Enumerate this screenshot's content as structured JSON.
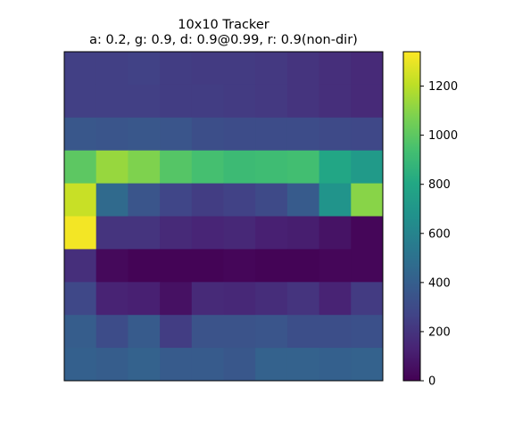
{
  "chart_data": {
    "type": "heatmap",
    "title": "10x10 Tracker",
    "subtitle": "a: 0.2, g: 0.9, d: 0.9@0.99, r: 0.9(non-dir)",
    "xlabel": "",
    "ylabel": "",
    "x_ticks_visible": false,
    "y_ticks_visible": false,
    "grid": false,
    "colormap": "viridis",
    "vmin": 0,
    "vmax": 1340,
    "colorbar_ticks": [
      "0",
      "200",
      "400",
      "600",
      "800",
      "1000",
      "1200"
    ],
    "colorbar_tick_values": [
      0,
      200,
      400,
      600,
      800,
      1000,
      1200
    ],
    "rows": 10,
    "cols": 10,
    "values": [
      [
        250,
        250,
        260,
        240,
        230,
        230,
        220,
        200,
        180,
        160
      ],
      [
        250,
        250,
        250,
        240,
        240,
        230,
        220,
        200,
        180,
        160
      ],
      [
        360,
        350,
        360,
        350,
        320,
        310,
        310,
        310,
        300,
        290
      ],
      [
        1000,
        1130,
        1080,
        980,
        940,
        910,
        920,
        930,
        790,
        720
      ],
      [
        1230,
        460,
        350,
        280,
        240,
        260,
        300,
        380,
        690,
        1100
      ],
      [
        1320,
        200,
        200,
        160,
        140,
        150,
        120,
        110,
        70,
        20
      ],
      [
        180,
        30,
        10,
        10,
        10,
        20,
        10,
        10,
        20,
        20
      ],
      [
        290,
        130,
        120,
        60,
        160,
        150,
        170,
        200,
        130,
        230
      ],
      [
        390,
        310,
        380,
        240,
        340,
        340,
        350,
        320,
        320,
        330
      ],
      [
        410,
        390,
        420,
        380,
        380,
        360,
        420,
        420,
        410,
        420
      ]
    ]
  }
}
